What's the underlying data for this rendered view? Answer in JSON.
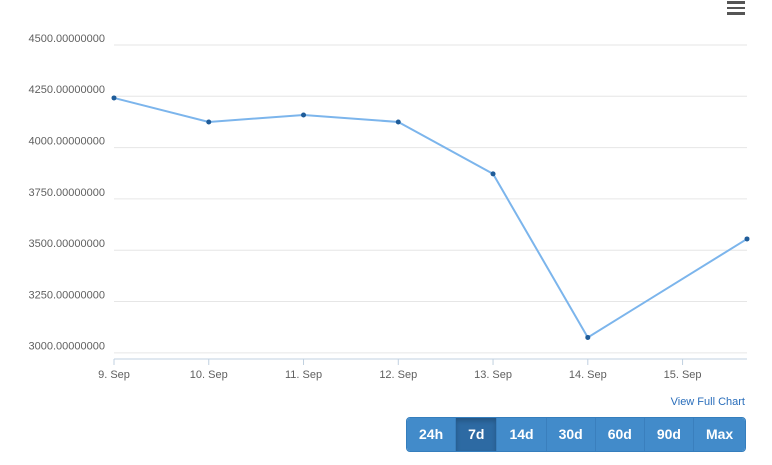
{
  "chart_data": {
    "type": "line",
    "x": [
      9,
      10,
      11,
      12,
      13,
      14,
      15.68
    ],
    "xlim": [
      9,
      15.68
    ],
    "xticks": [
      {
        "value": 9,
        "label": "9. Sep"
      },
      {
        "value": 10,
        "label": "10. Sep"
      },
      {
        "value": 11,
        "label": "11. Sep"
      },
      {
        "value": 12,
        "label": "12. Sep"
      },
      {
        "value": 13,
        "label": "13. Sep"
      },
      {
        "value": 14,
        "label": "14. Sep"
      },
      {
        "value": 15,
        "label": "15. Sep"
      }
    ],
    "series": [
      {
        "color": "#7cb5ec",
        "marker_color": "#1f5c99",
        "values": [
          4242,
          4125,
          4159,
          4125,
          3872,
          3075,
          3555
        ]
      }
    ],
    "ylim": [
      2970,
      4500
    ],
    "yticks": [
      {
        "value": 3000,
        "label": "3000.00000000"
      },
      {
        "value": 3250,
        "label": "3250.00000000"
      },
      {
        "value": 3500,
        "label": "3500.00000000"
      },
      {
        "value": 3750,
        "label": "3750.00000000"
      },
      {
        "value": 4000,
        "label": "4000.00000000"
      },
      {
        "value": 4250,
        "label": "4250.00000000"
      },
      {
        "value": 4500,
        "label": "4500.00000000"
      }
    ],
    "grid": true
  },
  "view_full_chart": "View Full Chart",
  "range_buttons": [
    "24h",
    "7d",
    "14d",
    "30d",
    "60d",
    "90d",
    "Max"
  ],
  "selected_button": 1
}
